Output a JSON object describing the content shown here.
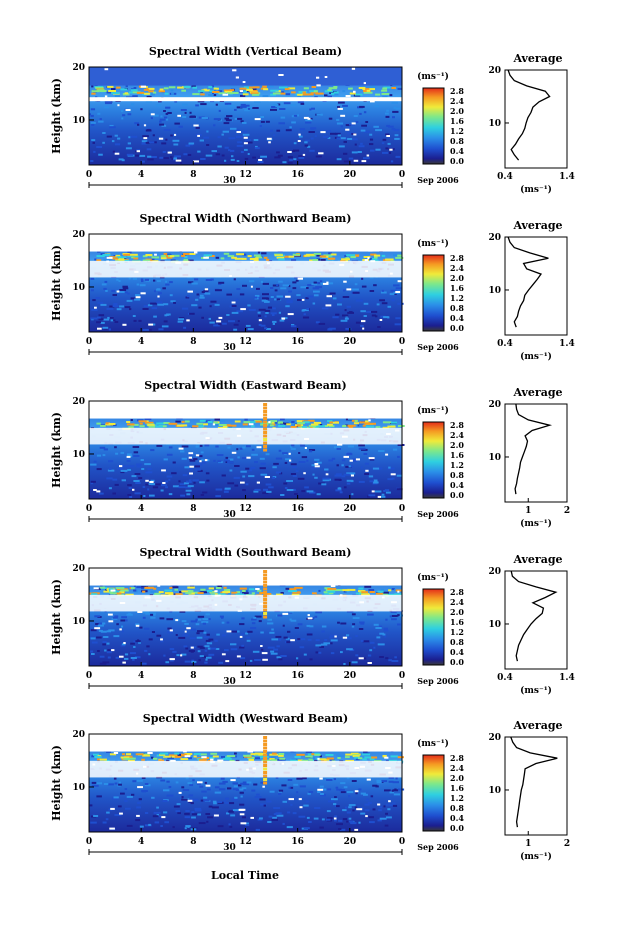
{
  "figure": {
    "xlabel": "Local Time",
    "ylabel": "Height (km)",
    "date_label": "Sep 2006",
    "day_label": "30",
    "colorbar_unit": "(ms⁻¹)",
    "colorbar_ticks": [
      "0.0",
      "0.4",
      "0.8",
      "1.2",
      "1.6",
      "2.0",
      "2.4",
      "2.8"
    ],
    "avg_title": "Average",
    "avg_xlabel": "(ms⁻¹)",
    "colors": {
      "low": "#1a1a8c",
      "mid": "#2f7fe0",
      "high": "#e8341c"
    }
  },
  "chart_data": [
    {
      "type": "heatmap",
      "title": "Spectral Width (Vertical Beam)",
      "xlabel": "",
      "ylabel": "Height (km)",
      "x_ticks": [
        "0",
        "4",
        "8",
        "12",
        "16",
        "20",
        "0"
      ],
      "y_ticks": [
        "20",
        "10"
      ],
      "xlim": [
        0,
        24
      ],
      "ylim": [
        1.5,
        20
      ],
      "color_range": [
        0.0,
        2.8
      ],
      "profile": {
        "title": "Average",
        "x_ticks": [
          "0.4",
          "1.4"
        ],
        "xlim": [
          0.4,
          1.4
        ],
        "y_ticks": [
          "20",
          "10"
        ],
        "points": [
          [
            0.62,
            3
          ],
          [
            0.55,
            4
          ],
          [
            0.5,
            5
          ],
          [
            0.57,
            6
          ],
          [
            0.62,
            7
          ],
          [
            0.68,
            8
          ],
          [
            0.72,
            9
          ],
          [
            0.74,
            10
          ],
          [
            0.77,
            11
          ],
          [
            0.82,
            12
          ],
          [
            0.85,
            13
          ],
          [
            0.95,
            14
          ],
          [
            1.12,
            15
          ],
          [
            1.05,
            16
          ],
          [
            0.75,
            17
          ],
          [
            0.55,
            18
          ],
          [
            0.48,
            19
          ],
          [
            0.45,
            20
          ]
        ]
      }
    },
    {
      "type": "heatmap",
      "title": "Spectral Width (Northward Beam)",
      "xlabel": "",
      "ylabel": "Height (km)",
      "x_ticks": [
        "0",
        "4",
        "8",
        "12",
        "16",
        "20",
        "0"
      ],
      "y_ticks": [
        "20",
        "10"
      ],
      "xlim": [
        0,
        24
      ],
      "ylim": [
        1.5,
        20
      ],
      "color_range": [
        0.0,
        2.8
      ],
      "profile": {
        "title": "Average",
        "x_ticks": [
          "0.4",
          "1.4"
        ],
        "xlim": [
          0.4,
          1.4
        ],
        "y_ticks": [
          "20",
          "10"
        ],
        "points": [
          [
            0.58,
            3
          ],
          [
            0.55,
            4
          ],
          [
            0.6,
            5
          ],
          [
            0.62,
            6
          ],
          [
            0.65,
            7
          ],
          [
            0.7,
            8
          ],
          [
            0.72,
            9
          ],
          [
            0.78,
            10
          ],
          [
            0.85,
            11
          ],
          [
            0.92,
            12
          ],
          [
            0.98,
            13
          ],
          [
            0.75,
            14
          ],
          [
            0.7,
            15
          ],
          [
            1.1,
            16
          ],
          [
            0.8,
            17
          ],
          [
            0.55,
            18
          ],
          [
            0.48,
            19
          ],
          [
            0.45,
            20
          ]
        ]
      }
    },
    {
      "type": "heatmap",
      "title": "Spectral Width (Eastward Beam)",
      "xlabel": "",
      "ylabel": "Height (km)",
      "x_ticks": [
        "0",
        "4",
        "8",
        "12",
        "16",
        "20",
        "0"
      ],
      "y_ticks": [
        "20",
        "10"
      ],
      "xlim": [
        0,
        24
      ],
      "ylim": [
        1.5,
        20
      ],
      "color_range": [
        0.0,
        2.8
      ],
      "profile": {
        "title": "Average",
        "x_ticks": [
          "1",
          "2"
        ],
        "xlim": [
          0.4,
          2.0
        ],
        "y_ticks": [
          "20",
          "10"
        ],
        "points": [
          [
            0.68,
            3
          ],
          [
            0.66,
            4
          ],
          [
            0.7,
            5
          ],
          [
            0.72,
            6
          ],
          [
            0.75,
            7
          ],
          [
            0.78,
            8
          ],
          [
            0.8,
            9
          ],
          [
            0.85,
            10
          ],
          [
            0.9,
            11
          ],
          [
            0.95,
            12
          ],
          [
            0.98,
            13
          ],
          [
            0.92,
            14
          ],
          [
            1.1,
            15
          ],
          [
            1.55,
            16
          ],
          [
            1.0,
            17
          ],
          [
            0.75,
            18
          ],
          [
            0.7,
            19
          ],
          [
            0.68,
            20
          ]
        ]
      }
    },
    {
      "type": "heatmap",
      "title": "Spectral Width (Southward Beam)",
      "xlabel": "",
      "ylabel": "Height (km)",
      "x_ticks": [
        "0",
        "4",
        "8",
        "12",
        "16",
        "20",
        "0"
      ],
      "y_ticks": [
        "20",
        "10"
      ],
      "xlim": [
        0,
        24
      ],
      "ylim": [
        1.5,
        20
      ],
      "color_range": [
        0.0,
        2.8
      ],
      "profile": {
        "title": "Average",
        "x_ticks": [
          "0.4",
          "1.4"
        ],
        "xlim": [
          0.4,
          1.4
        ],
        "y_ticks": [
          "20",
          "10"
        ],
        "points": [
          [
            0.6,
            3
          ],
          [
            0.58,
            4
          ],
          [
            0.6,
            5
          ],
          [
            0.62,
            6
          ],
          [
            0.66,
            7
          ],
          [
            0.7,
            8
          ],
          [
            0.76,
            9
          ],
          [
            0.82,
            10
          ],
          [
            0.9,
            11
          ],
          [
            1.0,
            12
          ],
          [
            1.02,
            13
          ],
          [
            0.85,
            14
          ],
          [
            1.05,
            15
          ],
          [
            1.22,
            16
          ],
          [
            0.9,
            17
          ],
          [
            0.62,
            18
          ],
          [
            0.52,
            19
          ],
          [
            0.5,
            20
          ]
        ]
      }
    },
    {
      "type": "heatmap",
      "title": "Spectral Width (Westward Beam)",
      "xlabel": "Local Time",
      "ylabel": "Height (km)",
      "x_ticks": [
        "0",
        "4",
        "8",
        "12",
        "16",
        "20",
        "0"
      ],
      "y_ticks": [
        "20",
        "10"
      ],
      "xlim": [
        0,
        24
      ],
      "ylim": [
        1.5,
        20
      ],
      "color_range": [
        0.0,
        2.8
      ],
      "profile": {
        "title": "Average",
        "x_ticks": [
          "1",
          "2"
        ],
        "xlim": [
          0.4,
          2.0
        ],
        "y_ticks": [
          "20",
          "10"
        ],
        "points": [
          [
            0.72,
            3
          ],
          [
            0.7,
            4
          ],
          [
            0.72,
            5
          ],
          [
            0.74,
            6
          ],
          [
            0.76,
            7
          ],
          [
            0.78,
            8
          ],
          [
            0.8,
            9
          ],
          [
            0.82,
            10
          ],
          [
            0.86,
            11
          ],
          [
            0.88,
            12
          ],
          [
            0.9,
            13
          ],
          [
            0.92,
            14
          ],
          [
            1.2,
            15
          ],
          [
            1.75,
            16
          ],
          [
            1.05,
            17
          ],
          [
            0.7,
            18
          ],
          [
            0.6,
            19
          ],
          [
            0.55,
            20
          ]
        ]
      }
    }
  ]
}
